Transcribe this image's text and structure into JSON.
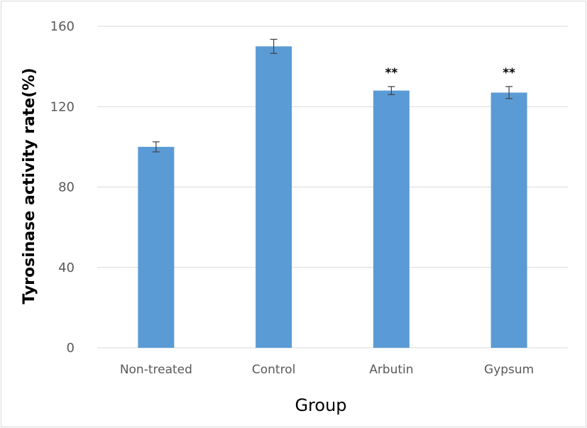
{
  "chart_data": {
    "type": "bar",
    "categories": [
      "Non-treated",
      "Control",
      "Arbutin",
      "Gypsum"
    ],
    "values": [
      100,
      150,
      128,
      127
    ],
    "errors": [
      2.5,
      3.5,
      2.0,
      3.0
    ],
    "annotations": [
      "",
      "",
      "**",
      "**"
    ],
    "title": "",
    "xlabel": "Group",
    "ylabel": "Tyrosinase activity rate(%)",
    "ylim": [
      0,
      160
    ],
    "yticks": [
      0,
      40,
      80,
      120,
      160
    ],
    "grid": true,
    "legend": "none",
    "colors": {
      "bar": "#5b9bd5",
      "grid": "#d9d9d9",
      "error_bar": "#404040"
    }
  }
}
